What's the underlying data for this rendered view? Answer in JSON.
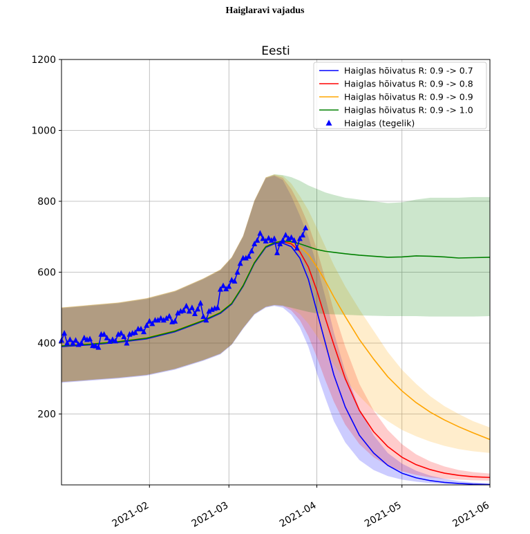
{
  "page": {
    "heading": "Haiglaravi vajadus"
  },
  "chart_data": {
    "type": "line",
    "title": "Eesti",
    "xlabel": "",
    "ylabel": "",
    "x_unit": "days since 2021-01-01",
    "xlim": [
      0,
      151
    ],
    "ylim": [
      0,
      1200
    ],
    "grid": true,
    "legend_position": "upper-right",
    "y_ticks": [
      {
        "value": 200,
        "label": "200"
      },
      {
        "value": 400,
        "label": "400"
      },
      {
        "value": 600,
        "label": "600"
      },
      {
        "value": 800,
        "label": "800"
      },
      {
        "value": 1000,
        "label": "1000"
      },
      {
        "value": 1200,
        "label": "1200"
      }
    ],
    "x_ticks": [
      {
        "value": 31,
        "label": "2021-02"
      },
      {
        "value": 59,
        "label": "2021-03"
      },
      {
        "value": 90,
        "label": "2021-04"
      },
      {
        "value": 120,
        "label": "2021-05"
      },
      {
        "value": 151,
        "label": "2021-06"
      }
    ],
    "series": [
      {
        "name": "Haiglas hõivatus  R: 0.9 -> 0.7",
        "color": "#0000ff",
        "band_color": "#0000ff",
        "x": [
          0,
          10,
          20,
          30,
          40,
          50,
          56,
          60,
          64,
          68,
          72,
          75,
          78,
          81,
          84,
          87,
          90,
          93,
          96,
          100,
          105,
          110,
          115,
          120,
          125,
          130,
          135,
          140,
          145,
          151
        ],
        "values": [
          390,
          395,
          402,
          412,
          432,
          462,
          484,
          510,
          560,
          625,
          670,
          680,
          682,
          672,
          640,
          580,
          490,
          400,
          310,
          220,
          140,
          90,
          55,
          33,
          20,
          12,
          7,
          4,
          2,
          1
        ],
        "lower": [
          288,
          294,
          300,
          308,
          325,
          350,
          368,
          395,
          440,
          480,
          500,
          505,
          500,
          480,
          445,
          390,
          315,
          245,
          180,
          120,
          70,
          42,
          25,
          15,
          9,
          5,
          3,
          2,
          1,
          0
        ],
        "upper": [
          498,
          505,
          512,
          524,
          545,
          580,
          605,
          640,
          700,
          800,
          865,
          872,
          860,
          815,
          760,
          700,
          620,
          530,
          430,
          320,
          215,
          140,
          90,
          60,
          40,
          26,
          17,
          11,
          7,
          4
        ]
      },
      {
        "name": "Haiglas hõivatus  R: 0.9 -> 0.8",
        "color": "#ff0000",
        "band_color": "#ff0000",
        "x": [
          0,
          10,
          20,
          30,
          40,
          50,
          56,
          60,
          64,
          68,
          72,
          75,
          78,
          81,
          84,
          87,
          90,
          93,
          96,
          100,
          105,
          110,
          115,
          120,
          125,
          130,
          135,
          140,
          145,
          151
        ],
        "values": [
          392,
          397,
          404,
          414,
          434,
          464,
          486,
          512,
          562,
          627,
          672,
          683,
          686,
          680,
          658,
          615,
          548,
          470,
          395,
          300,
          210,
          150,
          108,
          78,
          57,
          43,
          33,
          27,
          23,
          21
        ],
        "lower": [
          290,
          296,
          302,
          310,
          327,
          352,
          370,
          396,
          442,
          482,
          502,
          507,
          505,
          492,
          465,
          420,
          360,
          295,
          235,
          170,
          115,
          78,
          54,
          38,
          28,
          21,
          17,
          15,
          13,
          12
        ],
        "upper": [
          500,
          507,
          514,
          526,
          547,
          582,
          607,
          642,
          702,
          802,
          867,
          874,
          866,
          835,
          790,
          735,
          665,
          580,
          490,
          390,
          285,
          210,
          155,
          115,
          86,
          66,
          52,
          42,
          36,
          32
        ]
      },
      {
        "name": "Haiglas hõivatus  R: 0.9 -> 0.9",
        "color": "#ffa500",
        "band_color": "#ffa500",
        "x": [
          0,
          10,
          20,
          30,
          40,
          50,
          56,
          60,
          64,
          68,
          72,
          75,
          78,
          81,
          84,
          87,
          90,
          93,
          96,
          100,
          105,
          110,
          115,
          120,
          125,
          130,
          135,
          140,
          145,
          151
        ],
        "values": [
          393,
          398,
          405,
          415,
          435,
          465,
          487,
          513,
          563,
          628,
          673,
          684,
          688,
          684,
          672,
          650,
          615,
          575,
          530,
          475,
          410,
          355,
          305,
          265,
          232,
          205,
          183,
          164,
          147,
          128
        ],
        "lower": [
          291,
          297,
          303,
          311,
          328,
          353,
          371,
          397,
          443,
          483,
          503,
          508,
          507,
          498,
          482,
          455,
          420,
          380,
          340,
          295,
          250,
          210,
          180,
          155,
          137,
          122,
          110,
          101,
          95,
          90
        ],
        "upper": [
          501,
          508,
          515,
          527,
          548,
          583,
          608,
          643,
          703,
          803,
          868,
          876,
          872,
          850,
          815,
          775,
          725,
          672,
          620,
          560,
          495,
          435,
          375,
          325,
          285,
          250,
          222,
          200,
          180,
          162
        ]
      },
      {
        "name": "Haiglas hõivatus  R: 0.9 -> 1.0",
        "color": "#008000",
        "band_color": "#008000",
        "x": [
          0,
          10,
          20,
          30,
          40,
          50,
          56,
          60,
          64,
          68,
          72,
          75,
          78,
          81,
          84,
          87,
          90,
          93,
          96,
          100,
          105,
          110,
          115,
          120,
          125,
          130,
          135,
          140,
          145,
          151
        ],
        "values": [
          392,
          397,
          404,
          414,
          434,
          464,
          486,
          512,
          562,
          627,
          672,
          683,
          688,
          686,
          680,
          672,
          664,
          659,
          656,
          652,
          648,
          645,
          642,
          643,
          646,
          645,
          643,
          640,
          641,
          642
        ],
        "lower": [
          290,
          296,
          302,
          310,
          327,
          352,
          370,
          396,
          442,
          482,
          502,
          507,
          505,
          500,
          494,
          488,
          484,
          482,
          481,
          480,
          478,
          477,
          476,
          476,
          476,
          475,
          475,
          475,
          475,
          476
        ],
        "upper": [
          500,
          507,
          514,
          526,
          547,
          582,
          607,
          642,
          702,
          802,
          867,
          876,
          874,
          868,
          858,
          845,
          835,
          825,
          818,
          810,
          805,
          800,
          795,
          797,
          805,
          810,
          810,
          810,
          812,
          812
        ]
      }
    ],
    "actual": {
      "name": "Haiglas (tegelik)",
      "color": "#0000ff",
      "marker": "triangle",
      "x": [
        0,
        1,
        2,
        3,
        4,
        5,
        6,
        7,
        8,
        9,
        10,
        11,
        12,
        13,
        14,
        15,
        16,
        17,
        18,
        19,
        20,
        21,
        22,
        23,
        24,
        25,
        26,
        27,
        28,
        29,
        30,
        31,
        32,
        33,
        34,
        35,
        36,
        37,
        38,
        39,
        40,
        41,
        42,
        43,
        44,
        45,
        46,
        47,
        48,
        49,
        50,
        51,
        52,
        53,
        54,
        55,
        56,
        57,
        58,
        59,
        60,
        61,
        62,
        63,
        64,
        65,
        66,
        67,
        68,
        69,
        70,
        71,
        72,
        73,
        74,
        75,
        76,
        77,
        78,
        79,
        80,
        81,
        82,
        83,
        84,
        85,
        86
      ],
      "values": [
        408,
        428,
        400,
        410,
        400,
        408,
        396,
        400,
        415,
        410,
        412,
        393,
        392,
        388,
        425,
        425,
        415,
        405,
        410,
        406,
        425,
        428,
        418,
        400,
        425,
        428,
        430,
        440,
        440,
        432,
        450,
        462,
        455,
        465,
        465,
        470,
        465,
        470,
        476,
        460,
        462,
        485,
        490,
        492,
        505,
        490,
        500,
        483,
        496,
        513,
        475,
        465,
        490,
        495,
        498,
        500,
        552,
        562,
        553,
        560,
        578,
        575,
        600,
        625,
        640,
        640,
        645,
        660,
        680,
        690,
        710,
        695,
        688,
        696,
        690,
        695,
        655,
        680,
        690,
        705,
        695,
        698,
        690,
        668,
        695,
        705,
        725
      ]
    }
  }
}
